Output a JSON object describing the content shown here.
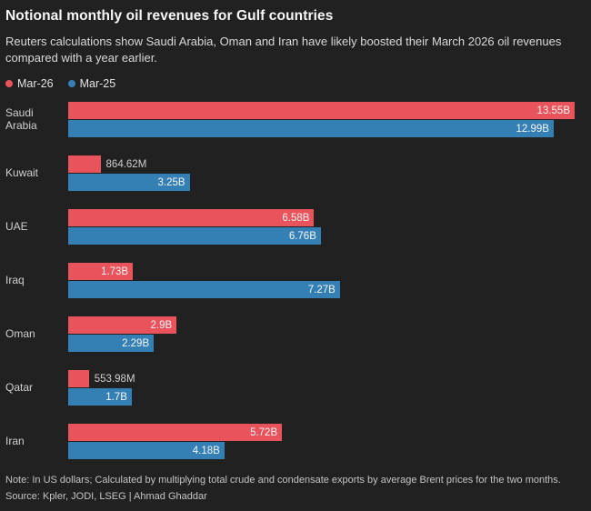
{
  "header": {
    "title": "Notional monthly oil revenues for Gulf countries",
    "subtitle": "Reuters calculations show Saudi Arabia, Oman and Iran have likely boosted their March 2026 oil revenues compared with a year earlier."
  },
  "legend": [
    {
      "label": "Mar-26",
      "color": "#e9535c"
    },
    {
      "label": "Mar-25",
      "color": "#3480b5"
    }
  ],
  "chart_data": {
    "type": "bar",
    "orientation": "horizontal",
    "title": "Notional monthly oil revenues for Gulf countries",
    "unit": "US dollars",
    "xmax": 13.55,
    "grid": false,
    "legend_position": "top",
    "categories": [
      "Saudi Arabia",
      "Kuwait",
      "UAE",
      "Iraq",
      "Oman",
      "Qatar",
      "Iran"
    ],
    "series": [
      {
        "name": "Mar-26",
        "color": "#e9535c",
        "values": [
          13.55,
          0.86462,
          6.58,
          1.73,
          2.9,
          0.55398,
          5.72
        ],
        "labels": [
          "13.55B",
          "864.62M",
          "6.58B",
          "1.73B",
          "2.9B",
          "553.98M",
          "5.72B"
        ],
        "label_position": [
          "inside",
          "outside",
          "inside",
          "inside",
          "inside",
          "outside",
          "inside"
        ]
      },
      {
        "name": "Mar-25",
        "color": "#3480b5",
        "values": [
          12.99,
          3.25,
          6.76,
          7.27,
          2.29,
          1.7,
          4.18
        ],
        "labels": [
          "12.99B",
          "3.25B",
          "6.76B",
          "7.27B",
          "2.29B",
          "1.7B",
          "4.18B"
        ],
        "label_position": [
          "inside",
          "inside",
          "inside",
          "inside",
          "inside",
          "inside",
          "inside"
        ]
      }
    ]
  },
  "footer": {
    "note": "Note: In US dollars; Calculated by multiplying total crude and condensate exports by average Brent prices for the two months.",
    "source": "Source: Kpler, JODI, LSEG | Ahmad Ghaddar"
  },
  "colors": {
    "background": "#212121",
    "title_text": "#f7f7f7",
    "body_text": "#d9d9d9",
    "bar_red": "#e9535c",
    "bar_blue": "#3480b5"
  }
}
